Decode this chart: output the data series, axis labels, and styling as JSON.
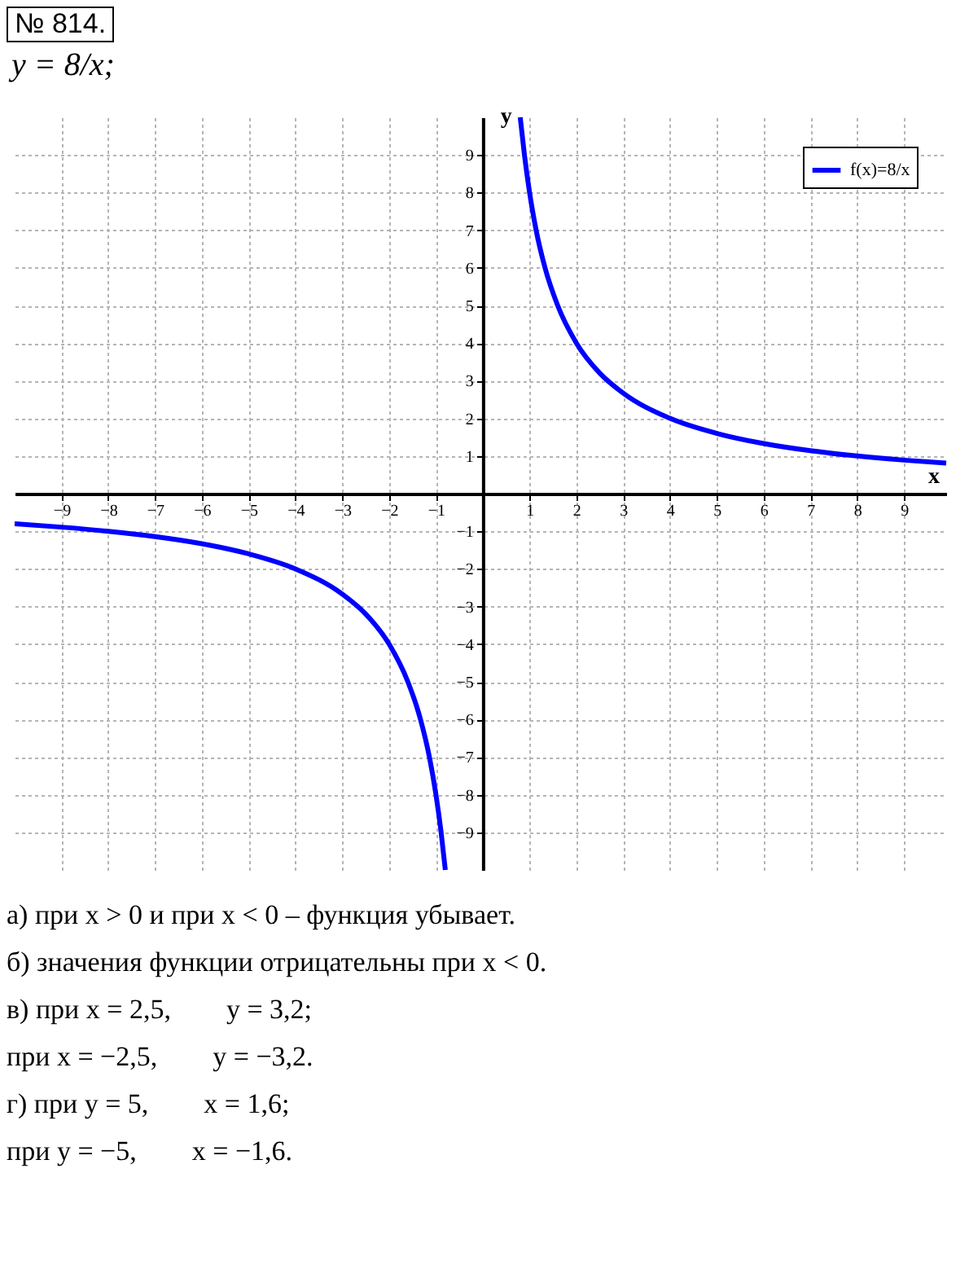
{
  "chart_data": {
    "type": "line",
    "title": "y = 8/x;",
    "xlabel": "x",
    "ylabel": "y",
    "xlim": [
      -10,
      9.9
    ],
    "ylim": [
      -10,
      10
    ],
    "xticks": [
      -9,
      -8,
      -7,
      -6,
      -5,
      -4,
      -3,
      -2,
      -1,
      1,
      2,
      3,
      4,
      5,
      6,
      7,
      8,
      9
    ],
    "yticks": [
      -9,
      -8,
      -7,
      -6,
      -5,
      -4,
      -3,
      -2,
      -1,
      1,
      2,
      3,
      4,
      5,
      6,
      7,
      8,
      9
    ],
    "grid": true,
    "legend": "top right",
    "line_style": "solid",
    "series": [
      {
        "name": "f(x)=8/x",
        "color": "#0000ff",
        "x": [
          -10,
          -9,
          -8,
          -7,
          -6,
          -5,
          -4,
          -3,
          -2.5,
          -2,
          -1.6,
          -1.33,
          -1.14,
          -1,
          -0.89,
          -0.8,
          0,
          0.8,
          0.89,
          1,
          1.14,
          1.33,
          1.6,
          2,
          2.5,
          3,
          4,
          5,
          6,
          7,
          8,
          9,
          9.9
        ],
        "values": [
          -0.8,
          -0.89,
          -1,
          -1.14,
          -1.33,
          -1.6,
          -2,
          -2.67,
          -3.2,
          -4,
          -5,
          -6,
          -7,
          -8,
          -9,
          -10,
          null,
          10,
          9,
          8,
          7,
          6,
          5,
          4,
          3.2,
          2.67,
          2,
          1.6,
          1.33,
          1.14,
          1,
          0.89,
          0.81
        ]
      }
    ],
    "annotations": [
      "№ 814.",
      "а) при x > 0 и при x < 0 – функция убывает.",
      "б) значения функции отрицательны при x < 0.",
      "в) при x = 2,5,        y = 3,2;",
      "при x = −2,5,        y = −3,2.",
      "г) при y = 5,        x = 1,6;",
      "при y = −5,        x = −1,6."
    ]
  }
}
